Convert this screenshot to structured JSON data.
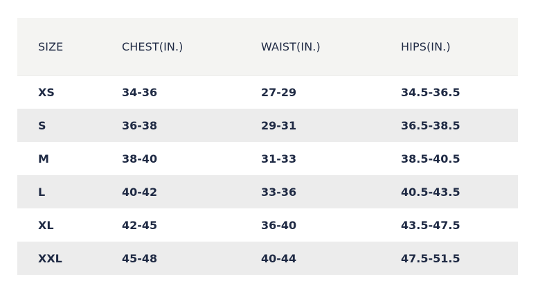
{
  "size_chart": {
    "headers": [
      "SIZE",
      "CHEST(IN.)",
      "WAIST(IN.)",
      "HIPS(IN.)"
    ],
    "rows": [
      [
        "XS",
        "34-36",
        "27-29",
        "34.5-36.5"
      ],
      [
        "S",
        "36-38",
        "29-31",
        "36.5-38.5"
      ],
      [
        "M",
        "38-40",
        "31-33",
        "38.5-40.5"
      ],
      [
        "L",
        "40-42",
        "33-36",
        "40.5-43.5"
      ],
      [
        "XL",
        "42-45",
        "36-40",
        "43.5-47.5"
      ],
      [
        "XXL",
        "45-48",
        "40-44",
        "47.5-51.5"
      ]
    ]
  }
}
